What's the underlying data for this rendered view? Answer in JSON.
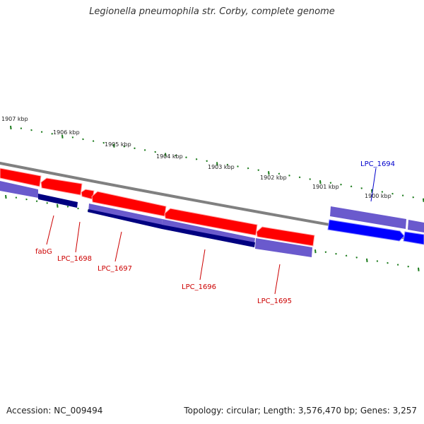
{
  "title": "Legionella pneumophila str. Corby, complete genome",
  "footer": {
    "accession": "Accession: NC_009494",
    "summary": "Topology: circular; Length: 3,576,470 bp; Genes: 3,257"
  },
  "colors": {
    "forward_cds": "#ff0000",
    "forward_gene": "#7a6ad6",
    "reverse_cds": "#0000ff",
    "reverse_gene": "#6a5acd",
    "backbone": "#808080",
    "ticks": "#1a7a1a",
    "label_forward": "#0000cc",
    "label_reverse": "#cc0000"
  },
  "ticks": [
    "1907 kbp",
    "1906 kbp",
    "1905 kbp",
    "1904 kbp",
    "1903 kbp",
    "1902 kbp",
    "1901 kbp",
    "1900 kbp"
  ],
  "gene_labels": [
    {
      "name": "fabG",
      "strand": "reverse"
    },
    {
      "name": "LPC_1698",
      "strand": "reverse"
    },
    {
      "name": "LPC_1697",
      "strand": "reverse"
    },
    {
      "name": "LPC_1696",
      "strand": "reverse"
    },
    {
      "name": "LPC_1695",
      "strand": "reverse"
    },
    {
      "name": "LPC_1694",
      "strand": "forward"
    }
  ]
}
